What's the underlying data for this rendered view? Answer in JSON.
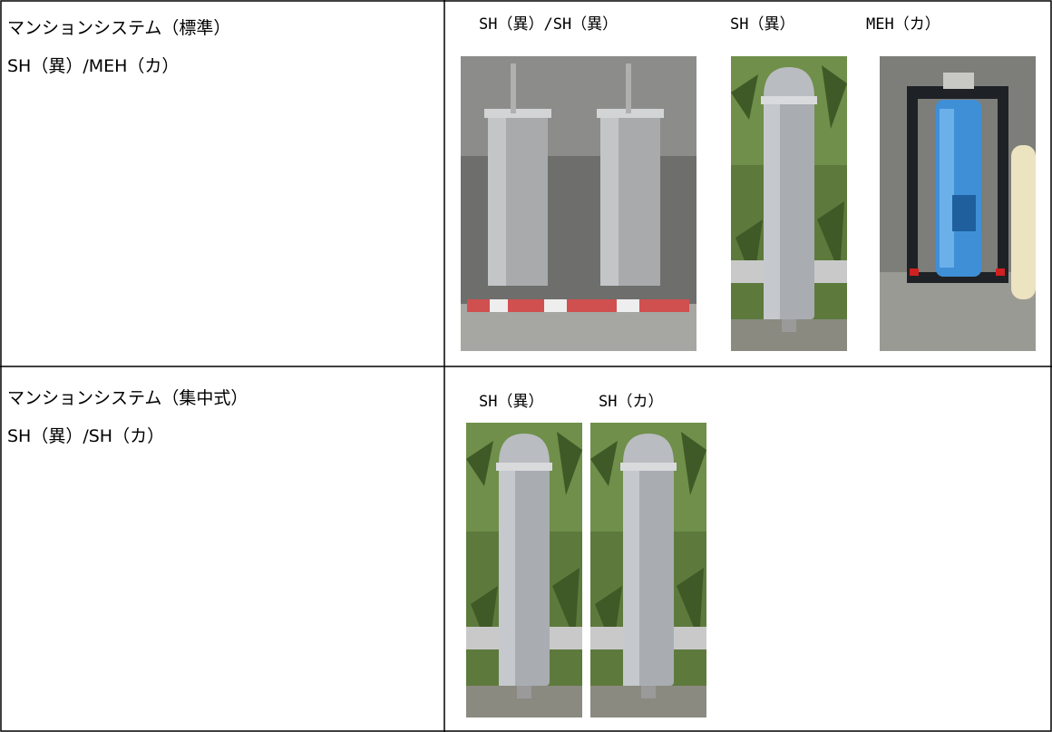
{
  "table": {
    "rows": [
      {
        "label": "マンションシステム（標準）",
        "sublabel": "SH（異）/MEH（カ）",
        "photos": [
          {
            "caption": "SH（異）/SH（異）"
          },
          {
            "caption": "SH（異）"
          },
          {
            "caption": "MEH（カ）"
          }
        ]
      },
      {
        "label": "マンションシステム（集中式）",
        "sublabel": "SH（異）/SH（カ）",
        "photos": [
          {
            "caption": "SH（異）"
          },
          {
            "caption": "SH（カ）"
          }
        ]
      }
    ]
  }
}
